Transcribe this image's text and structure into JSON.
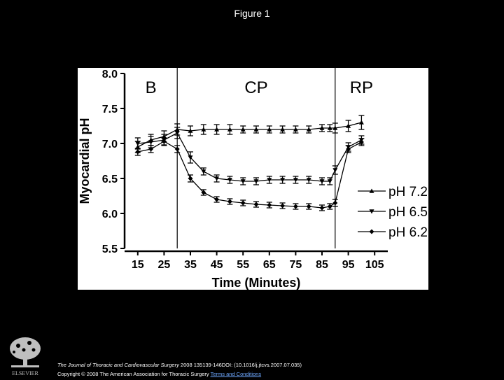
{
  "figure_title": "Figure 1",
  "footer": {
    "journal": "The Journal of Thoracic and Cardiovascular Surgery",
    "citation": " 2008 135139-146DOI: (10.1016/j.jtcvs.2007.07.035)",
    "copyright": "Copyright © 2008 The American Association for Thoracic Surgery",
    "terms_link": "Terms and Conditions"
  },
  "logo": {
    "label": "ELSEVIER",
    "icon": "elsevier-tree-icon"
  },
  "chart_data": {
    "type": "line",
    "xlabel": "Time (Minutes)",
    "ylabel": "Myocardial pH",
    "xlim": [
      10,
      110
    ],
    "ylim": [
      5.5,
      8.0
    ],
    "xticks": [
      15,
      25,
      35,
      45,
      55,
      65,
      75,
      85,
      95,
      105
    ],
    "yticks": [
      5.5,
      6.0,
      6.5,
      7.0,
      7.5,
      8.0
    ],
    "ytick_labels": [
      "5.5",
      "6.0",
      "6.5",
      "7.0",
      "7.5",
      "8.0"
    ],
    "phase_lines": [
      30,
      90
    ],
    "phase_labels": [
      {
        "text": "B",
        "x": 20
      },
      {
        "text": "CP",
        "x": 60
      },
      {
        "text": "RP",
        "x": 100
      }
    ],
    "legend_position": "right",
    "series": [
      {
        "name": "pH 7.2",
        "marker": "triangle-up",
        "x": [
          15,
          20,
          25,
          30,
          35,
          40,
          45,
          50,
          55,
          60,
          65,
          70,
          75,
          80,
          85,
          88,
          90,
          95,
          100
        ],
        "y": [
          6.95,
          7.05,
          7.1,
          7.2,
          7.18,
          7.2,
          7.2,
          7.2,
          7.2,
          7.2,
          7.2,
          7.2,
          7.2,
          7.2,
          7.22,
          7.22,
          7.22,
          7.25,
          7.3
        ],
        "err": [
          0.08,
          0.08,
          0.08,
          0.08,
          0.07,
          0.07,
          0.07,
          0.07,
          0.05,
          0.05,
          0.05,
          0.05,
          0.05,
          0.05,
          0.05,
          0.05,
          0.07,
          0.08,
          0.1
        ]
      },
      {
        "name": "pH 6.5",
        "marker": "triangle-down",
        "x": [
          15,
          20,
          25,
          30,
          35,
          40,
          45,
          50,
          55,
          60,
          65,
          70,
          75,
          80,
          85,
          88,
          90,
          95,
          100
        ],
        "y": [
          7.0,
          7.02,
          7.05,
          7.15,
          6.8,
          6.6,
          6.5,
          6.48,
          6.46,
          6.46,
          6.48,
          6.48,
          6.48,
          6.48,
          6.46,
          6.46,
          6.62,
          6.95,
          7.05
        ],
        "err": [
          0.08,
          0.08,
          0.08,
          0.08,
          0.08,
          0.05,
          0.05,
          0.05,
          0.05,
          0.05,
          0.05,
          0.05,
          0.05,
          0.05,
          0.05,
          0.05,
          0.06,
          0.06,
          0.06
        ]
      },
      {
        "name": "pH 6.2",
        "marker": "diamond",
        "x": [
          15,
          20,
          25,
          30,
          35,
          40,
          45,
          50,
          55,
          60,
          65,
          70,
          75,
          80,
          85,
          88,
          90,
          95,
          100
        ],
        "y": [
          6.88,
          6.92,
          7.03,
          6.92,
          6.5,
          6.3,
          6.2,
          6.17,
          6.15,
          6.13,
          6.12,
          6.11,
          6.1,
          6.1,
          6.08,
          6.1,
          6.15,
          6.92,
          7.02
        ],
        "err": [
          0.05,
          0.05,
          0.05,
          0.05,
          0.05,
          0.04,
          0.04,
          0.04,
          0.04,
          0.04,
          0.04,
          0.04,
          0.04,
          0.04,
          0.04,
          0.04,
          0.05,
          0.05,
          0.05
        ]
      }
    ]
  }
}
